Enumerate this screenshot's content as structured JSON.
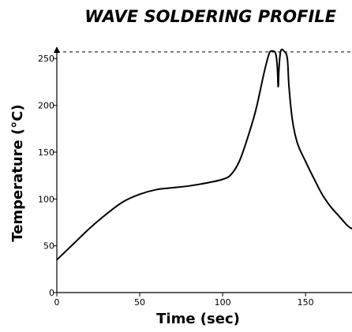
{
  "chart_data": {
    "type": "line",
    "title": "WAVE SOLDERING PROFILE",
    "xlabel": "Time (sec)",
    "ylabel": "Temperature (°C)",
    "xlim": [
      0,
      178
    ],
    "ylim": [
      0,
      262
    ],
    "xticks": [
      0,
      50,
      100,
      150
    ],
    "yticks": [
      0,
      50,
      100,
      150,
      200,
      250
    ],
    "reference_line": {
      "y": 257,
      "style": "dashed"
    },
    "series": [
      {
        "x": [
          0,
          10,
          20,
          30,
          40,
          50,
          60,
          70,
          80,
          90,
          100,
          105,
          110,
          115,
          120,
          125,
          128,
          130,
          132,
          133,
          133.5,
          134,
          135,
          137,
          139,
          140,
          142,
          145,
          150,
          155,
          160,
          165,
          170,
          175,
          178
        ],
        "y": [
          35,
          52,
          69,
          84,
          97,
          105,
          110,
          112,
          114,
          117,
          121,
          126,
          140,
          165,
          195,
          235,
          255,
          258,
          255,
          240,
          220,
          240,
          258,
          258,
          250,
          220,
          185,
          160,
          140,
          122,
          105,
          92,
          82,
          72,
          68
        ]
      }
    ]
  }
}
